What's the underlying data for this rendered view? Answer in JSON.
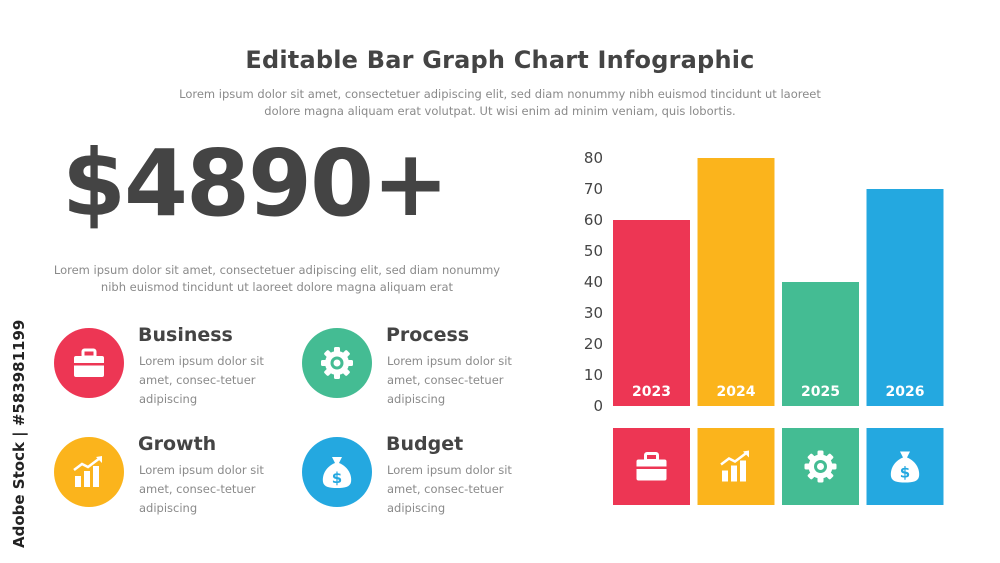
{
  "header": {
    "title": "Editable Bar Graph Chart Infographic",
    "subtitle": "Lorem ipsum dolor sit amet, consectetuer adipiscing elit, sed diam nonummy nibh euismod tincidunt ut laoreet dolore magna aliquam erat volutpat. Ut wisi enim ad minim veniam, quis lobortis."
  },
  "highlight": {
    "value": "$4890+",
    "description": "Lorem ipsum dolor sit amet, consectetuer adipiscing elit, sed diam nonummy nibh euismod tincidunt ut laoreet dolore magna aliquam erat"
  },
  "features": [
    {
      "title": "Business",
      "description": "Lorem ipsum dolor sit amet, consec-tetuer adipiscing",
      "icon": "briefcase-icon",
      "color": "#ED3654"
    },
    {
      "title": "Process",
      "description": "Lorem ipsum dolor sit amet, consec-tetuer adipiscing",
      "icon": "gear-icon",
      "color": "#44BC93"
    },
    {
      "title": "Growth",
      "description": "Lorem ipsum dolor sit amet, consec-tetuer adipiscing",
      "icon": "growth-chart-icon",
      "color": "#FBB41C"
    },
    {
      "title": "Budget",
      "description": "Lorem ipsum dolor sit amet, consec-tetuer adipiscing",
      "icon": "money-bag-icon",
      "color": "#24A8E0"
    }
  ],
  "chart_data": {
    "type": "bar",
    "title": "",
    "xlabel": "",
    "ylabel": "",
    "categories": [
      "2023",
      "2024",
      "2025",
      "2026"
    ],
    "values": [
      60,
      80,
      40,
      70
    ],
    "colors": [
      "#ED3654",
      "#FBB41C",
      "#44BC93",
      "#24A8E0"
    ],
    "icons": [
      "briefcase-icon",
      "growth-chart-icon",
      "gear-icon",
      "money-bag-icon"
    ],
    "ylim": [
      0,
      80
    ],
    "yticks": [
      0,
      10,
      20,
      30,
      40,
      50,
      60,
      70,
      80
    ],
    "grid": false,
    "legend": "none"
  },
  "watermark": "Adobe Stock | #583981199"
}
